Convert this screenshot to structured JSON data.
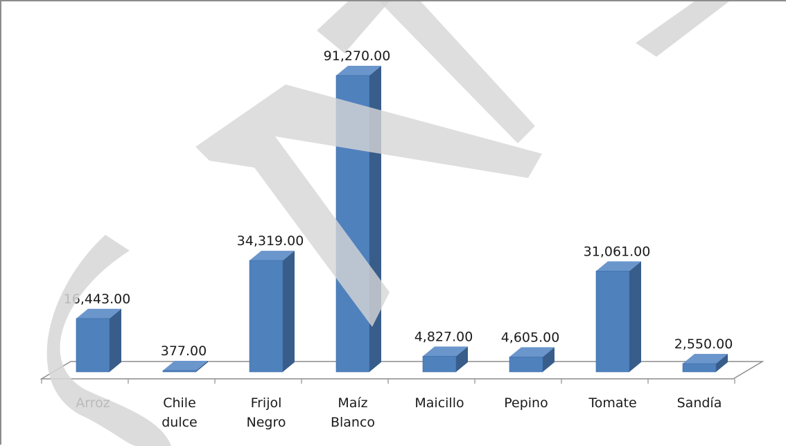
{
  "chart_data": {
    "type": "bar",
    "categories": [
      [
        "Arroz"
      ],
      [
        "Chile",
        "dulce"
      ],
      [
        "Frijol",
        "Negro"
      ],
      [
        "Maíz",
        "Blanco"
      ],
      [
        "Maicillo"
      ],
      [
        "Pepino"
      ],
      [
        "Tomate"
      ],
      [
        "Sandía"
      ]
    ],
    "values": [
      16443,
      377,
      34319,
      91270,
      4827,
      4605,
      31061,
      2550
    ],
    "value_labels": [
      "16,443.00",
      "377.00",
      "34,319.00",
      "91,270.00",
      "4,827.00",
      "4,605.00",
      "31,061.00",
      "2,550.00"
    ],
    "style": "3d-column",
    "bar_color": "#4f81bd",
    "bar_side_color": "#385d8a",
    "bar_top_color": "#6a96cc",
    "floor_line_color": "#8c8c8c",
    "watermark_color": "#d6d6d6"
  }
}
